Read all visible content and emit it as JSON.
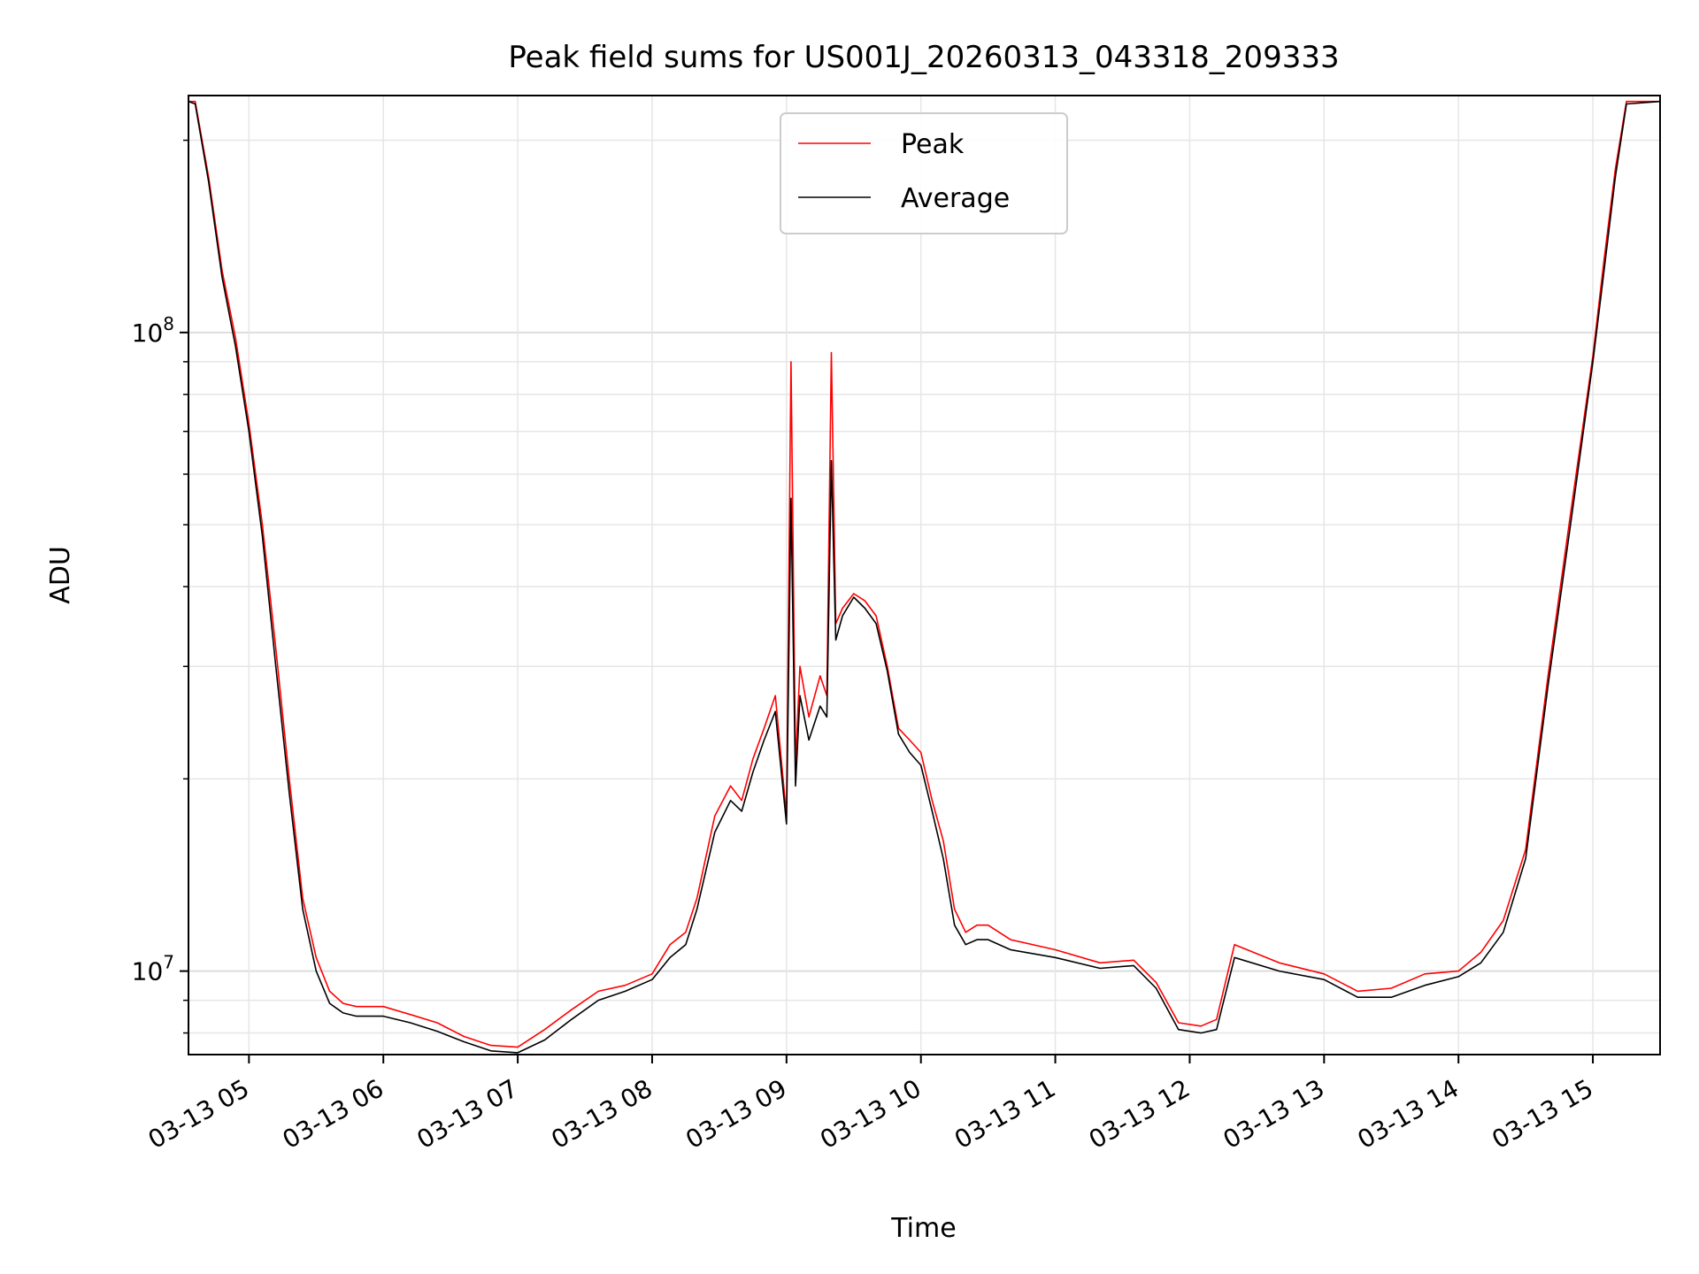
{
  "chart_data": {
    "type": "line",
    "title": "Peak field sums for US001J_20260313_043318_209333",
    "xlabel": "Time",
    "ylabel": "ADU",
    "y_scale": "log",
    "ylim": [
      7400000,
      235000000
    ],
    "xlim": [
      "03-13 04:33",
      "03-13 15:30"
    ],
    "x_ticks": [
      "03-13 05",
      "03-13 06",
      "03-13 07",
      "03-13 08",
      "03-13 09",
      "03-13 10",
      "03-13 11",
      "03-13 12",
      "03-13 13",
      "03-13 14",
      "03-13 15"
    ],
    "y_ticks": [
      {
        "label_base": "10",
        "label_exp": "7",
        "value": 10000000
      },
      {
        "label_base": "10",
        "label_exp": "8",
        "value": 100000000
      }
    ],
    "grid": true,
    "legend": {
      "placement": "top-center"
    },
    "series": [
      {
        "name": "Peak",
        "color": "#ff0000",
        "x": [
          "03-13 04:33",
          "03-13 04:36",
          "03-13 04:42",
          "03-13 04:48",
          "03-13 04:54",
          "03-13 05:00",
          "03-13 05:06",
          "03-13 05:12",
          "03-13 05:18",
          "03-13 05:24",
          "03-13 05:30",
          "03-13 05:36",
          "03-13 05:42",
          "03-13 05:48",
          "03-13 06:00",
          "03-13 06:12",
          "03-13 06:24",
          "03-13 06:36",
          "03-13 06:48",
          "03-13 07:00",
          "03-13 07:12",
          "03-13 07:24",
          "03-13 07:36",
          "03-13 07:48",
          "03-13 08:00",
          "03-13 08:08",
          "03-13 08:15",
          "03-13 08:20",
          "03-13 08:28",
          "03-13 08:35",
          "03-13 08:40",
          "03-13 08:45",
          "03-13 08:50",
          "03-13 08:55",
          "03-13 09:00",
          "03-13 09:02",
          "03-13 09:04",
          "03-13 09:06",
          "03-13 09:10",
          "03-13 09:15",
          "03-13 09:18",
          "03-13 09:20",
          "03-13 09:22",
          "03-13 09:25",
          "03-13 09:30",
          "03-13 09:35",
          "03-13 09:40",
          "03-13 09:45",
          "03-13 09:50",
          "03-13 09:55",
          "03-13 10:00",
          "03-13 10:05",
          "03-13 10:10",
          "03-13 10:15",
          "03-13 10:20",
          "03-13 10:25",
          "03-13 10:30",
          "03-13 10:40",
          "03-13 11:00",
          "03-13 11:20",
          "03-13 11:35",
          "03-13 11:45",
          "03-13 11:55",
          "03-13 12:05",
          "03-13 12:12",
          "03-13 12:20",
          "03-13 12:40",
          "03-13 13:00",
          "03-13 13:15",
          "03-13 13:30",
          "03-13 13:45",
          "03-13 14:00",
          "03-13 14:10",
          "03-13 14:20",
          "03-13 14:30",
          "03-13 14:40",
          "03-13 14:50",
          "03-13 15:00",
          "03-13 15:05",
          "03-13 15:10",
          "03-13 15:15",
          "03-13 15:30"
        ],
        "values": [
          230000000,
          230000000,
          175000000,
          125000000,
          98000000,
          72000000,
          50000000,
          32000000,
          20000000,
          13000000,
          10500000,
          9300000,
          8900000,
          8800000,
          8800000,
          8550000,
          8300000,
          7900000,
          7650000,
          7600000,
          8100000,
          8700000,
          9300000,
          9500000,
          9900000,
          11000000,
          11500000,
          13000000,
          17500000,
          19500000,
          18500000,
          21500000,
          24000000,
          27000000,
          17500000,
          90000000,
          21000000,
          30000000,
          25000000,
          29000000,
          27000000,
          93000000,
          35000000,
          37000000,
          39000000,
          38000000,
          36000000,
          30000000,
          24000000,
          23000000,
          22000000,
          18500000,
          16000000,
          12500000,
          11500000,
          11800000,
          11800000,
          11200000,
          10800000,
          10300000,
          10400000,
          9600000,
          8300000,
          8200000,
          8400000,
          11000000,
          10300000,
          9900000,
          9300000,
          9400000,
          9900000,
          10000000,
          10700000,
          12000000,
          15500000,
          29000000,
          52000000,
          92000000,
          130000000,
          180000000,
          230000000,
          230000000
        ]
      },
      {
        "name": "Average",
        "color": "#000000",
        "x": [
          "03-13 04:33",
          "03-13 04:36",
          "03-13 04:42",
          "03-13 04:48",
          "03-13 04:54",
          "03-13 05:00",
          "03-13 05:06",
          "03-13 05:12",
          "03-13 05:18",
          "03-13 05:24",
          "03-13 05:30",
          "03-13 05:36",
          "03-13 05:42",
          "03-13 05:48",
          "03-13 06:00",
          "03-13 06:12",
          "03-13 06:24",
          "03-13 06:36",
          "03-13 06:48",
          "03-13 07:00",
          "03-13 07:12",
          "03-13 07:24",
          "03-13 07:36",
          "03-13 07:48",
          "03-13 08:00",
          "03-13 08:08",
          "03-13 08:15",
          "03-13 08:20",
          "03-13 08:28",
          "03-13 08:35",
          "03-13 08:40",
          "03-13 08:45",
          "03-13 08:50",
          "03-13 08:55",
          "03-13 09:00",
          "03-13 09:02",
          "03-13 09:04",
          "03-13 09:06",
          "03-13 09:10",
          "03-13 09:15",
          "03-13 09:18",
          "03-13 09:20",
          "03-13 09:22",
          "03-13 09:25",
          "03-13 09:30",
          "03-13 09:35",
          "03-13 09:40",
          "03-13 09:45",
          "03-13 09:50",
          "03-13 09:55",
          "03-13 10:00",
          "03-13 10:05",
          "03-13 10:10",
          "03-13 10:15",
          "03-13 10:20",
          "03-13 10:25",
          "03-13 10:30",
          "03-13 10:40",
          "03-13 11:00",
          "03-13 11:20",
          "03-13 11:35",
          "03-13 11:45",
          "03-13 11:55",
          "03-13 12:05",
          "03-13 12:12",
          "03-13 12:20",
          "03-13 12:40",
          "03-13 13:00",
          "03-13 13:15",
          "03-13 13:30",
          "03-13 13:45",
          "03-13 14:00",
          "03-13 14:10",
          "03-13 14:20",
          "03-13 14:30",
          "03-13 14:40",
          "03-13 14:50",
          "03-13 15:00",
          "03-13 15:05",
          "03-13 15:10",
          "03-13 15:15",
          "03-13 15:30"
        ],
        "values": [
          230000000,
          228000000,
          172000000,
          122000000,
          95000000,
          70000000,
          48000000,
          30000000,
          19000000,
          12500000,
          10000000,
          8900000,
          8600000,
          8500000,
          8500000,
          8300000,
          8050000,
          7750000,
          7500000,
          7450000,
          7800000,
          8400000,
          9000000,
          9300000,
          9700000,
          10500000,
          11000000,
          12500000,
          16500000,
          18500000,
          17800000,
          20500000,
          23000000,
          25500000,
          17000000,
          55000000,
          19500000,
          27000000,
          23000000,
          26000000,
          25000000,
          63000000,
          33000000,
          36000000,
          38500000,
          37000000,
          35000000,
          29500000,
          23500000,
          22000000,
          21000000,
          17800000,
          15000000,
          11800000,
          11000000,
          11200000,
          11200000,
          10800000,
          10500000,
          10100000,
          10200000,
          9400000,
          8100000,
          8000000,
          8100000,
          10500000,
          10000000,
          9700000,
          9100000,
          9100000,
          9500000,
          9800000,
          10300000,
          11500000,
          15000000,
          28000000,
          50000000,
          90000000,
          125000000,
          175000000,
          228000000,
          230000000
        ]
      }
    ]
  }
}
